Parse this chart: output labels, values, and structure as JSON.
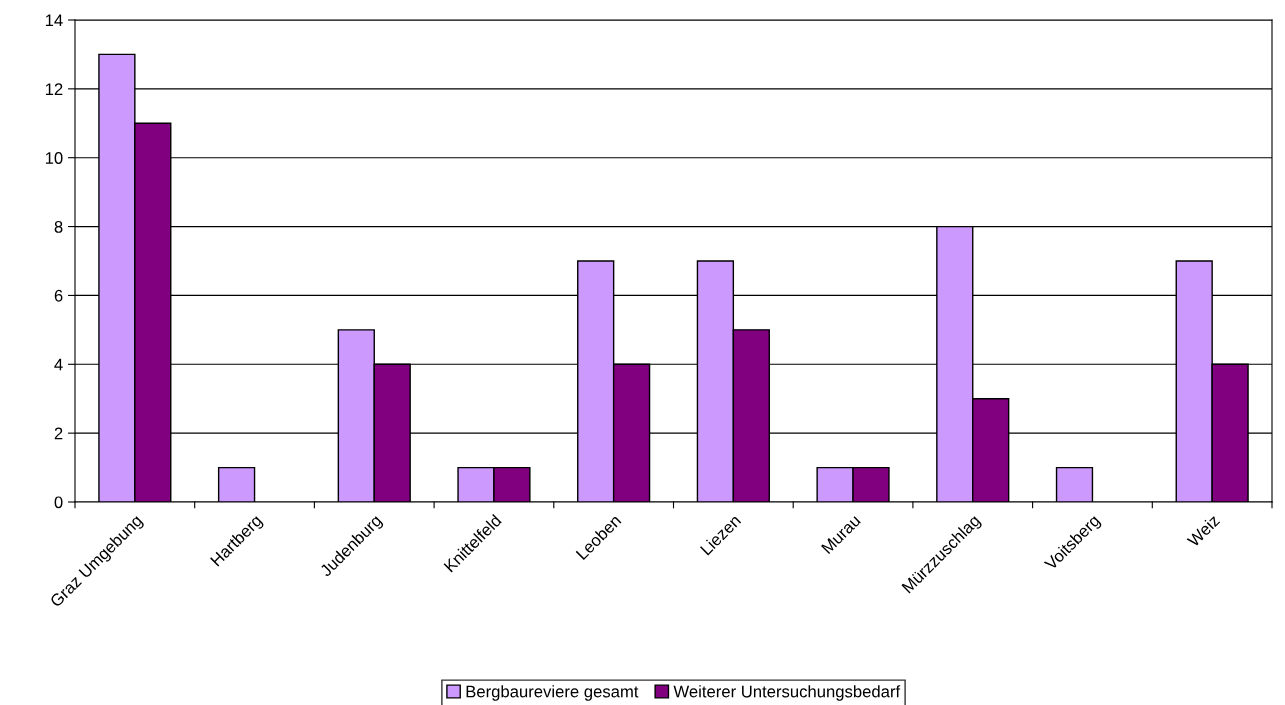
{
  "chart_data": {
    "type": "bar",
    "categories": [
      "Graz Umgebung",
      "Hartberg",
      "Judenburg",
      "Knittelfeld",
      "Leoben",
      "Liezen",
      "Murau",
      "Mürzzuschlag",
      "Voitsberg",
      "Weiz"
    ],
    "series": [
      {
        "name": "Bergbaureviere gesamt",
        "color": "#cc99ff",
        "values": [
          13,
          1,
          5,
          1,
          7,
          7,
          1,
          8,
          1,
          7
        ]
      },
      {
        "name": "Weiterer Untersuchungsbedarf",
        "color": "#800080",
        "values": [
          11,
          null,
          4,
          1,
          4,
          5,
          1,
          3,
          null,
          4
        ]
      }
    ],
    "ylim": [
      0,
      14
    ],
    "yticks": [
      0,
      2,
      4,
      6,
      8,
      10,
      12,
      14
    ],
    "grid": "y",
    "legend": "bottom"
  }
}
